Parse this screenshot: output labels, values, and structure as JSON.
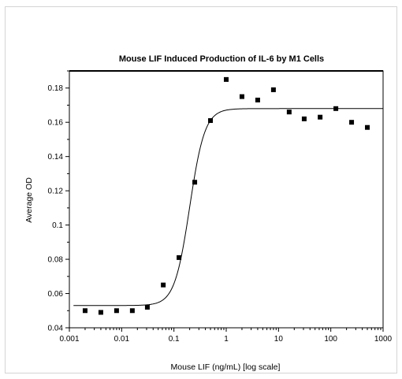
{
  "chart_data": {
    "type": "scatter",
    "title": "Mouse LIF Induced Production of IL-6 by M1 Cells",
    "xlabel": "Mouse LIF (ng/mL) [log scale]",
    "ylabel": "Average OD",
    "xscale": "log",
    "xlim": [
      0.001,
      1000
    ],
    "ylim": [
      0.04,
      0.19
    ],
    "xticks": [
      "0.001",
      "0.01",
      "0.1",
      "1",
      "10",
      "100",
      "1000"
    ],
    "yticks": [
      "0.04",
      "0.06",
      "0.08",
      "0.1",
      "0.12",
      "0.14",
      "0.16",
      "0.18"
    ],
    "grid": false,
    "series": [
      {
        "x": [
          0.002,
          0.004,
          0.008,
          0.016,
          0.031,
          0.0625,
          0.125,
          0.25,
          0.5,
          1,
          2,
          4,
          8,
          16,
          31,
          62.5,
          125,
          250,
          500
        ],
        "y": [
          0.05,
          0.049,
          0.05,
          0.05,
          0.052,
          0.065,
          0.081,
          0.125,
          0.161,
          0.185,
          0.175,
          0.173,
          0.179,
          0.166,
          0.162,
          0.163,
          0.168,
          0.16,
          0.157
        ]
      }
    ],
    "fit_curve": {
      "model": "4PL",
      "bottom": 0.053,
      "top": 0.168,
      "ec50": 0.2,
      "hill": 3
    }
  }
}
